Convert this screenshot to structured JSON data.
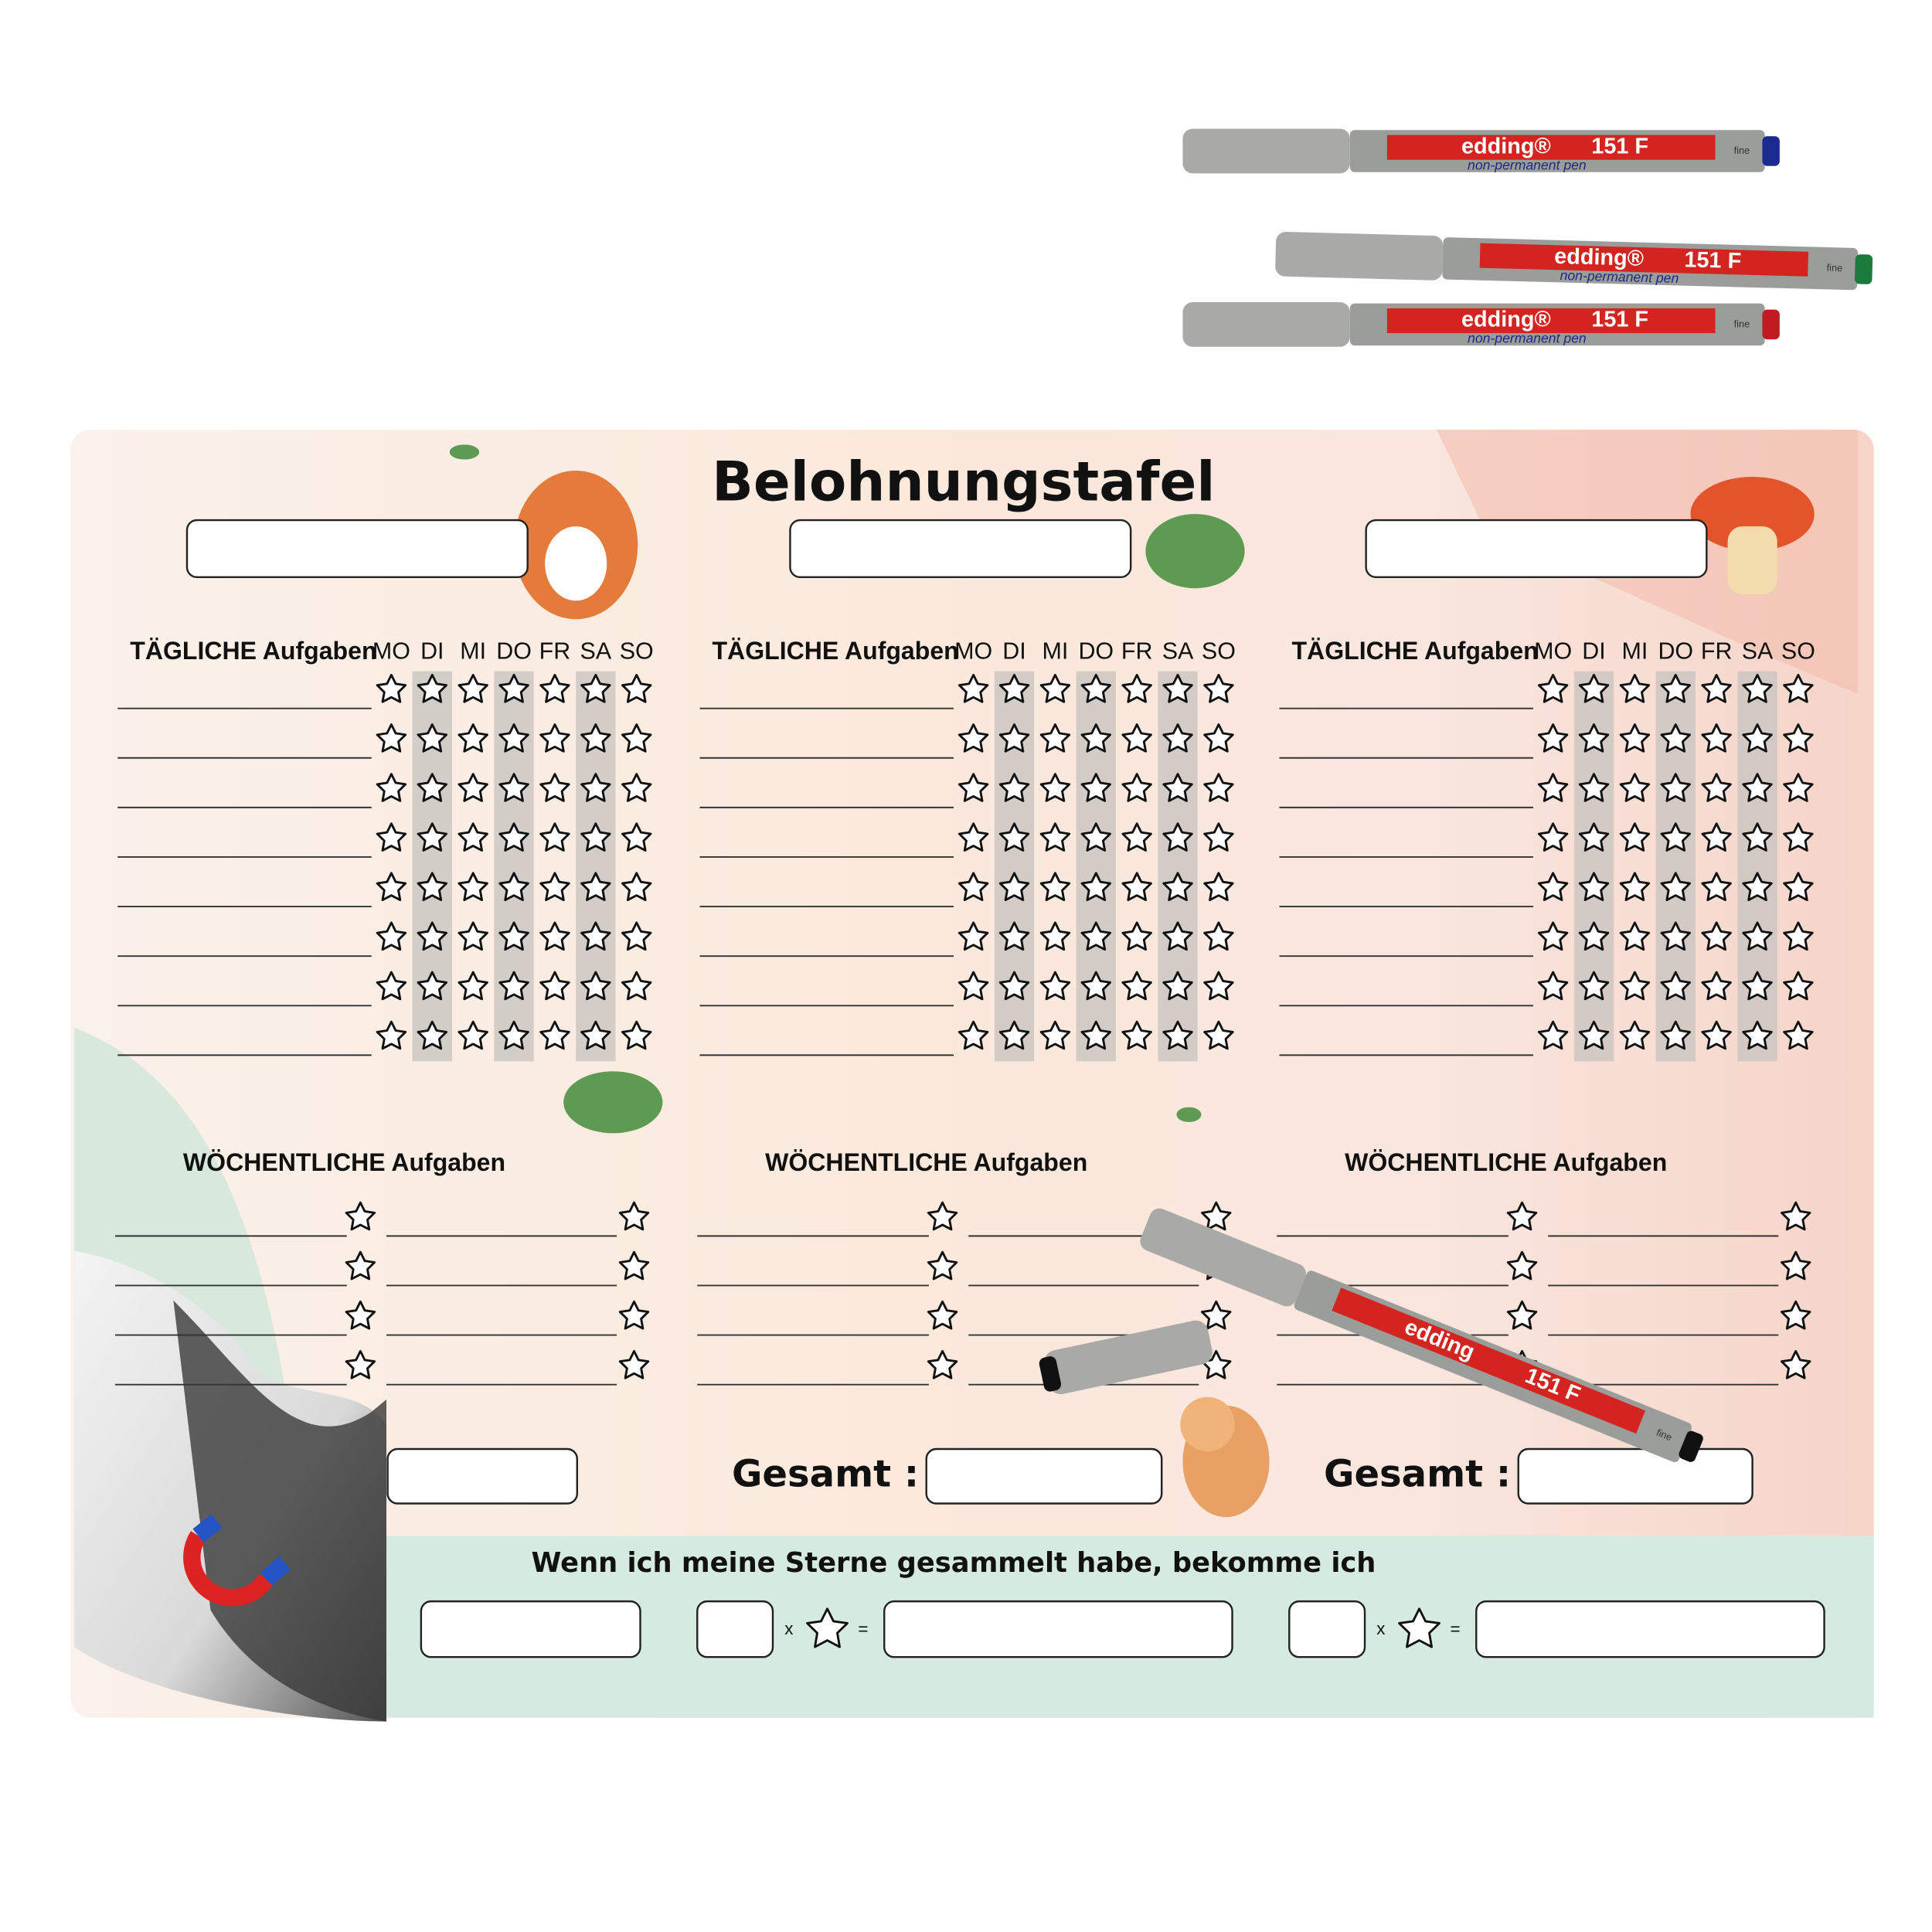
{
  "title": "Belohnungstafel",
  "sections": [
    {
      "daily_heading": "TÄGLICHE Aufgaben",
      "days": [
        "MO",
        "DI",
        "MI",
        "DO",
        "FR",
        "SA",
        "SO"
      ],
      "weekly_heading": "WÖCHENTLICHE Aufgaben"
    },
    {
      "daily_heading": "TÄGLICHE Aufgaben",
      "days": [
        "MO",
        "DI",
        "MI",
        "DO",
        "FR",
        "SA",
        "SO"
      ],
      "weekly_heading": "WÖCHENTLICHE Aufgaben",
      "total_label": "Gesamt :"
    },
    {
      "daily_heading": "TÄGLICHE Aufgaben",
      "days": [
        "MO",
        "DI",
        "MI",
        "DO",
        "FR",
        "SA",
        "SO"
      ],
      "weekly_heading": "WÖCHENTLICHE Aufgaben",
      "total_label": "Gesamt :"
    }
  ],
  "reward": {
    "prompt": "Wenn ich meine Sterne gesammelt habe, bekomme ich",
    "rows": [
      {
        "times": "x",
        "equals": "="
      },
      {
        "times": "x",
        "equals": "="
      }
    ]
  },
  "pens": [
    {
      "brand": "edding®",
      "model": "151 F",
      "subtitle": "non-permanent pen",
      "tip": "fine"
    },
    {
      "brand": "edding®",
      "model": "151 F",
      "subtitle": "non-permanent pen",
      "tip": "fine"
    },
    {
      "brand": "edding®",
      "model": "151 F",
      "subtitle": "non-permanent pen",
      "tip": "fine"
    },
    {
      "brand": "edding",
      "model": "151 F",
      "tip": "fine"
    }
  ]
}
